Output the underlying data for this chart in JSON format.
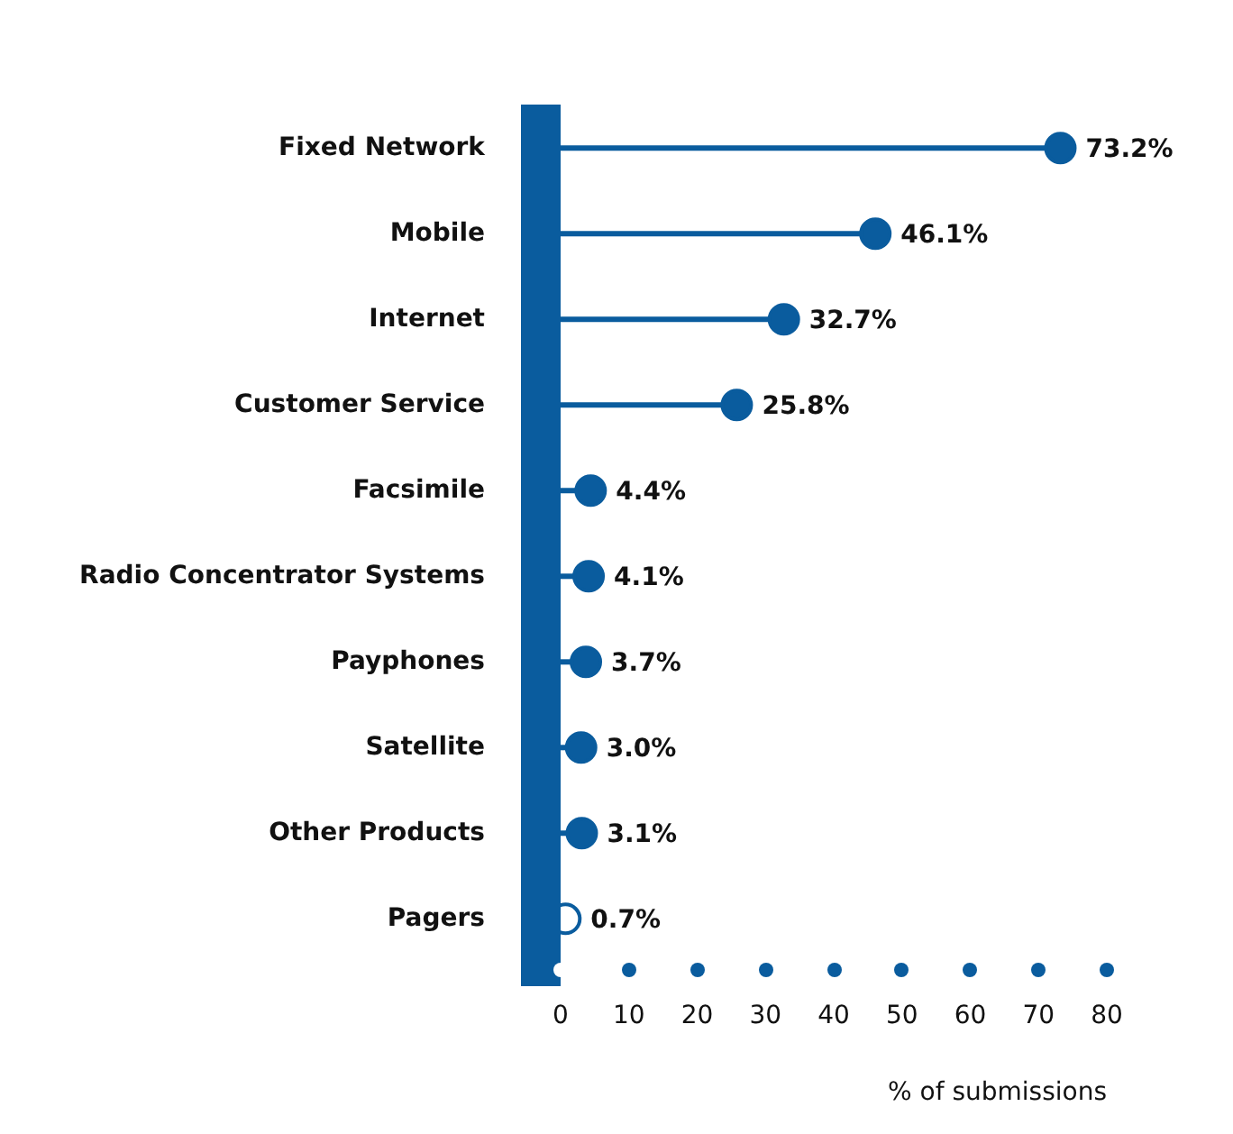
{
  "chart_data": {
    "type": "lollipop",
    "orientation": "horizontal",
    "xlabel": "% of submissions",
    "categories": [
      "Fixed Network",
      "Mobile",
      "Internet",
      "Customer Service",
      "Facsimile",
      "Radio Concentrator Systems",
      "Payphones",
      "Satellite",
      "Other Products",
      "Pagers"
    ],
    "values": [
      73.2,
      46.1,
      32.7,
      25.8,
      4.4,
      4.1,
      3.7,
      3.0,
      3.1,
      0.7
    ],
    "value_labels": [
      "73.2%",
      "46.1%",
      "32.7%",
      "25.8%",
      "4.4%",
      "4.1%",
      "3.7%",
      "3.0%",
      "3.1%",
      "0.7%"
    ],
    "color": "#0a5c9e",
    "xlim": [
      0,
      80
    ],
    "xticks": [
      0,
      10,
      20,
      30,
      40,
      50,
      60,
      70,
      80
    ],
    "grid": false,
    "legend": false,
    "marker": "circle"
  }
}
